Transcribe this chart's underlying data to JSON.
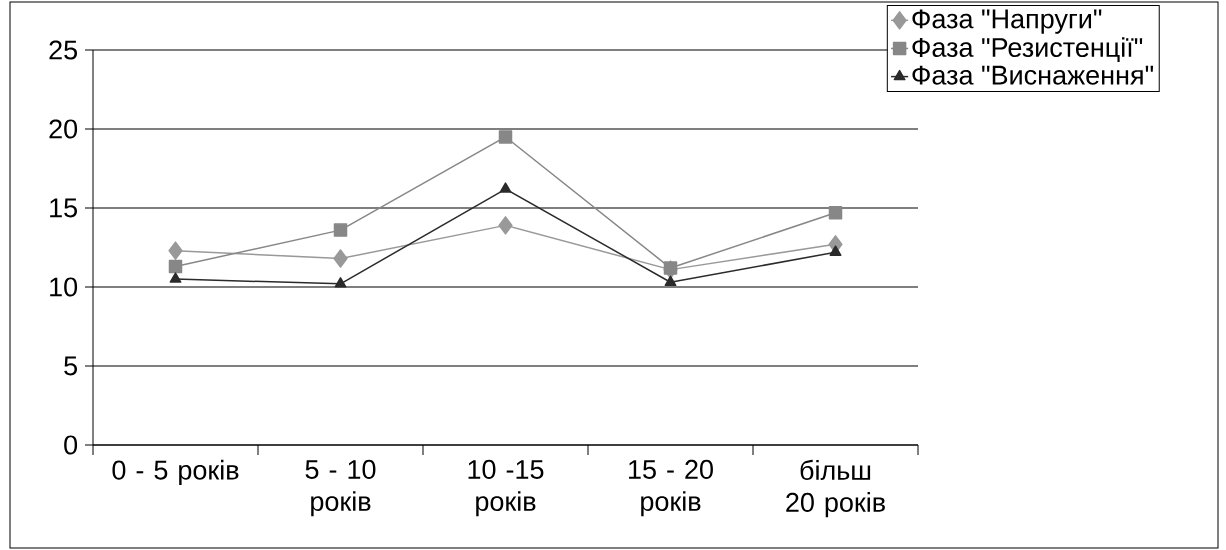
{
  "chart_data": {
    "type": "line",
    "categories": [
      "0 - 5 років",
      "5 - 10 років",
      "10 -15 років",
      "15 - 20 років",
      "більш 20 років"
    ],
    "series": [
      {
        "name": "Фаза \"Напруги\"",
        "color": "#999999",
        "marker": "diamond",
        "values": [
          12.3,
          11.8,
          13.9,
          11.1,
          12.7
        ]
      },
      {
        "name": "Фаза \"Резистенції\"",
        "color": "#878787",
        "marker": "square",
        "values": [
          11.3,
          13.6,
          19.5,
          11.2,
          14.7
        ]
      },
      {
        "name": "Фаза \"Виснаження\"",
        "color": "#2b2b2b",
        "marker": "triangle",
        "values": [
          10.5,
          10.2,
          16.2,
          10.3,
          12.2
        ]
      }
    ],
    "ylim": [
      0,
      25
    ],
    "yticks": [
      0,
      5,
      10,
      15,
      20,
      25
    ],
    "grid": "y",
    "legend": "top right"
  }
}
